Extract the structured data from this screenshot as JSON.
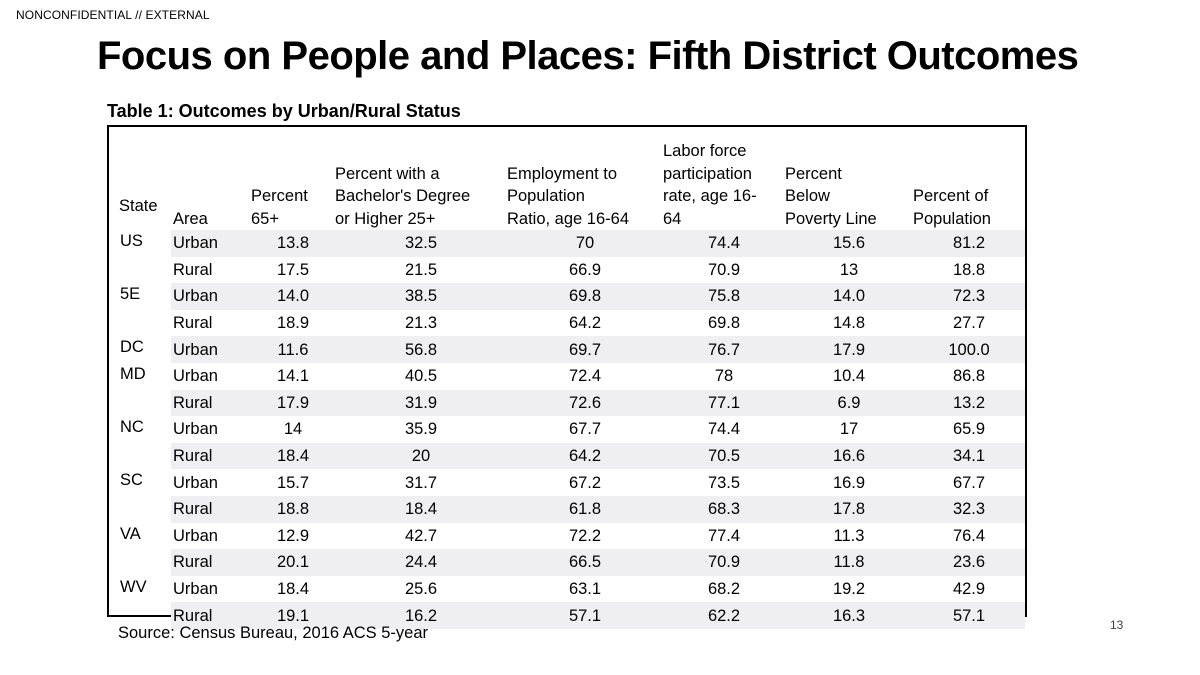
{
  "header": {
    "classification": "NONCONFIDENTIAL // EXTERNAL",
    "title": "Focus on People and Places: Fifth District Outcomes"
  },
  "table": {
    "caption": "Table 1: Outcomes by Urban/Rural Status",
    "columns": [
      "State",
      "Area",
      "Percent 65+",
      "Percent with a Bachelor's Degree or Higher 25+",
      "Employment to Population Ratio, age 16-64",
      "Labor force participation rate, age 16-64",
      "Percent Below Poverty Line",
      "Percent of Population"
    ],
    "header_lines": {
      "state": [
        "State"
      ],
      "area": [
        "Area"
      ],
      "pct65": [
        "Percent",
        "65+"
      ],
      "bachelor": [
        "Percent with a",
        "Bachelor's Degree",
        "or Higher 25+"
      ],
      "employment": [
        "Employment to",
        "Population",
        "Ratio, age 16-64"
      ],
      "labor": [
        "Labor force",
        "participation",
        "rate, age 16-",
        "64"
      ],
      "poverty": [
        "Percent",
        "Below",
        "Poverty Line"
      ],
      "population": [
        "Percent of",
        "Population"
      ]
    },
    "rows": [
      {
        "state": "US",
        "area": "Urban",
        "values": [
          "13.8",
          "32.5",
          "70",
          "74.4",
          "15.6",
          "81.2"
        ]
      },
      {
        "state": "",
        "area": "Rural",
        "values": [
          "17.5",
          "21.5",
          "66.9",
          "70.9",
          "13",
          "18.8"
        ]
      },
      {
        "state": "5E",
        "area": "Urban",
        "values": [
          "14.0",
          "38.5",
          "69.8",
          "75.8",
          "14.0",
          "72.3"
        ]
      },
      {
        "state": "",
        "area": "Rural",
        "values": [
          "18.9",
          "21.3",
          "64.2",
          "69.8",
          "14.8",
          "27.7"
        ]
      },
      {
        "state": "DC",
        "area": "Urban",
        "values": [
          "11.6",
          "56.8",
          "69.7",
          "76.7",
          "17.9",
          "100.0"
        ]
      },
      {
        "state": "MD",
        "area": "Urban",
        "values": [
          "14.1",
          "40.5",
          "72.4",
          "78",
          "10.4",
          "86.8"
        ]
      },
      {
        "state": "",
        "area": "Rural",
        "values": [
          "17.9",
          "31.9",
          "72.6",
          "77.1",
          "6.9",
          "13.2"
        ]
      },
      {
        "state": "NC",
        "area": "Urban",
        "values": [
          "14",
          "35.9",
          "67.7",
          "74.4",
          "17",
          "65.9"
        ]
      },
      {
        "state": "",
        "area": "Rural",
        "values": [
          "18.4",
          "20",
          "64.2",
          "70.5",
          "16.6",
          "34.1"
        ]
      },
      {
        "state": "SC",
        "area": "Urban",
        "values": [
          "15.7",
          "31.7",
          "67.2",
          "73.5",
          "16.9",
          "67.7"
        ]
      },
      {
        "state": "",
        "area": "Rural",
        "values": [
          "18.8",
          "18.4",
          "61.8",
          "68.3",
          "17.8",
          "32.3"
        ]
      },
      {
        "state": "VA",
        "area": "Urban",
        "values": [
          "12.9",
          "42.7",
          "72.2",
          "77.4",
          "11.3",
          "76.4"
        ]
      },
      {
        "state": "",
        "area": "Rural",
        "values": [
          "20.1",
          "24.4",
          "66.5",
          "70.9",
          "11.8",
          "23.6"
        ]
      },
      {
        "state": "WV",
        "area": "Urban",
        "values": [
          "18.4",
          "25.6",
          "63.1",
          "68.2",
          "19.2",
          "42.9"
        ]
      },
      {
        "state": "",
        "area": "Rural",
        "values": [
          "19.1",
          "16.2",
          "57.1",
          "62.2",
          "16.3",
          "57.1"
        ]
      }
    ]
  },
  "footer": {
    "source": "Source: Census Bureau, 2016 ACS 5-year",
    "page_number": "13"
  },
  "colors": {
    "row_shade": "#efeff3",
    "border": "#000000"
  }
}
